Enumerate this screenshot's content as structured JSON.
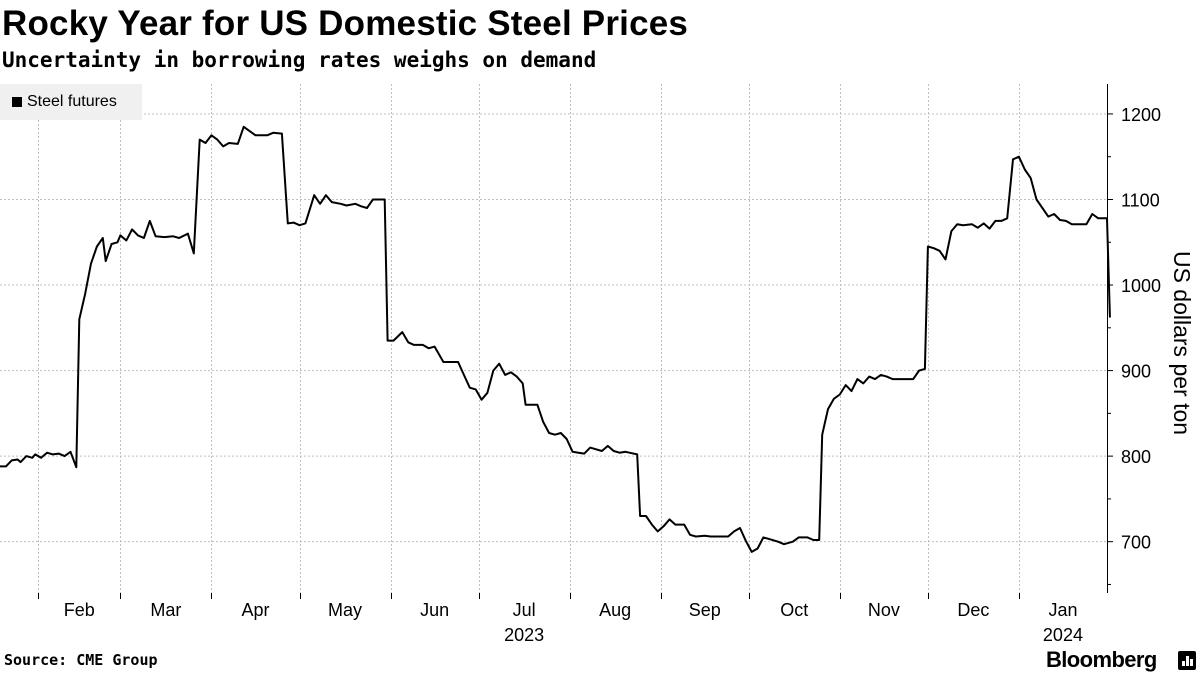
{
  "header": {
    "title": "Rocky Year for US Domestic Steel Prices",
    "subtitle": "Uncertainty in borrowing rates weighs on demand"
  },
  "legend": {
    "label": "Steel futures"
  },
  "footer": {
    "source": "Source: CME Group",
    "brand": "Bloomberg"
  },
  "colors": {
    "line": "#000000",
    "grid": "#bfbfbf",
    "legend_bg": "#f0f0f0"
  },
  "chart_data": {
    "type": "line",
    "title": "Rocky Year for US Domestic Steel Prices",
    "subtitle": "Uncertainty in borrowing rates weighs on demand",
    "xlabel": "",
    "ylabel": "US dollars per ton",
    "ylim": [
      640,
      1235
    ],
    "yticks": [
      700,
      800,
      900,
      1000,
      1100,
      1200
    ],
    "xlim": [
      "2023-01-19",
      "2024-01-31"
    ],
    "month_ticks": [
      {
        "date": "2023-02-01",
        "label": "Feb"
      },
      {
        "date": "2023-03-01",
        "label": "Mar"
      },
      {
        "date": "2023-04-01",
        "label": "Apr"
      },
      {
        "date": "2023-05-01",
        "label": "May"
      },
      {
        "date": "2023-06-01",
        "label": "Jun"
      },
      {
        "date": "2023-07-01",
        "label": "Jul"
      },
      {
        "date": "2023-08-01",
        "label": "Aug"
      },
      {
        "date": "2023-09-01",
        "label": "Sep"
      },
      {
        "date": "2023-10-01",
        "label": "Oct"
      },
      {
        "date": "2023-11-01",
        "label": "Nov"
      },
      {
        "date": "2023-12-01",
        "label": "Dec"
      },
      {
        "date": "2024-01-01",
        "label": "Jan"
      }
    ],
    "year_labels": [
      {
        "date": "2023-07-01",
        "label": "2023"
      },
      {
        "date": "2024-01-01",
        "label": "2024"
      }
    ],
    "legend_position": "top-left",
    "grid": true,
    "series": [
      {
        "name": "Steel futures",
        "points": [
          [
            "2023-01-19",
            788
          ],
          [
            "2023-01-21",
            788
          ],
          [
            "2023-01-23",
            795
          ],
          [
            "2023-01-25",
            796
          ],
          [
            "2023-01-26",
            793
          ],
          [
            "2023-01-28",
            800
          ],
          [
            "2023-01-30",
            798
          ],
          [
            "2023-01-31",
            802
          ],
          [
            "2023-02-02",
            798
          ],
          [
            "2023-02-04",
            804
          ],
          [
            "2023-02-06",
            802
          ],
          [
            "2023-02-08",
            803
          ],
          [
            "2023-02-10",
            800
          ],
          [
            "2023-02-12",
            805
          ],
          [
            "2023-02-14",
            787
          ],
          [
            "2023-02-15",
            960
          ],
          [
            "2023-02-17",
            990
          ],
          [
            "2023-02-19",
            1025
          ],
          [
            "2023-02-21",
            1045
          ],
          [
            "2023-02-23",
            1055
          ],
          [
            "2023-02-24",
            1028
          ],
          [
            "2023-02-26",
            1048
          ],
          [
            "2023-02-28",
            1050
          ],
          [
            "2023-03-01",
            1058
          ],
          [
            "2023-03-03",
            1052
          ],
          [
            "2023-03-05",
            1065
          ],
          [
            "2023-03-07",
            1058
          ],
          [
            "2023-03-09",
            1055
          ],
          [
            "2023-03-11",
            1075
          ],
          [
            "2023-03-13",
            1057
          ],
          [
            "2023-03-16",
            1056
          ],
          [
            "2023-03-19",
            1057
          ],
          [
            "2023-03-21",
            1055
          ],
          [
            "2023-03-24",
            1060
          ],
          [
            "2023-03-26",
            1037
          ],
          [
            "2023-03-28",
            1170
          ],
          [
            "2023-03-30",
            1166
          ],
          [
            "2023-04-01",
            1175
          ],
          [
            "2023-04-03",
            1170
          ],
          [
            "2023-04-05",
            1162
          ],
          [
            "2023-04-07",
            1166
          ],
          [
            "2023-04-10",
            1165
          ],
          [
            "2023-04-12",
            1185
          ],
          [
            "2023-04-14",
            1180
          ],
          [
            "2023-04-16",
            1175
          ],
          [
            "2023-04-20",
            1175
          ],
          [
            "2023-04-22",
            1178
          ],
          [
            "2023-04-25",
            1177
          ],
          [
            "2023-04-27",
            1072
          ],
          [
            "2023-04-29",
            1073
          ],
          [
            "2023-05-01",
            1070
          ],
          [
            "2023-05-03",
            1072
          ],
          [
            "2023-05-06",
            1105
          ],
          [
            "2023-05-08",
            1095
          ],
          [
            "2023-05-10",
            1105
          ],
          [
            "2023-05-12",
            1097
          ],
          [
            "2023-05-15",
            1095
          ],
          [
            "2023-05-17",
            1093
          ],
          [
            "2023-05-20",
            1095
          ],
          [
            "2023-05-22",
            1092
          ],
          [
            "2023-05-24",
            1090
          ],
          [
            "2023-05-26",
            1100
          ],
          [
            "2023-05-30",
            1100
          ],
          [
            "2023-05-31",
            935
          ],
          [
            "2023-06-02",
            935
          ],
          [
            "2023-06-05",
            945
          ],
          [
            "2023-06-07",
            933
          ],
          [
            "2023-06-09",
            930
          ],
          [
            "2023-06-12",
            930
          ],
          [
            "2023-06-14",
            926
          ],
          [
            "2023-06-16",
            928
          ],
          [
            "2023-06-19",
            910
          ],
          [
            "2023-06-24",
            910
          ],
          [
            "2023-06-26",
            895
          ],
          [
            "2023-06-28",
            880
          ],
          [
            "2023-06-30",
            878
          ],
          [
            "2023-07-02",
            866
          ],
          [
            "2023-07-04",
            874
          ],
          [
            "2023-07-06",
            900
          ],
          [
            "2023-07-08",
            908
          ],
          [
            "2023-07-10",
            895
          ],
          [
            "2023-07-12",
            898
          ],
          [
            "2023-07-14",
            893
          ],
          [
            "2023-07-16",
            885
          ],
          [
            "2023-07-17",
            860
          ],
          [
            "2023-07-21",
            860
          ],
          [
            "2023-07-23",
            840
          ],
          [
            "2023-07-25",
            827
          ],
          [
            "2023-07-27",
            825
          ],
          [
            "2023-07-29",
            827
          ],
          [
            "2023-07-31",
            820
          ],
          [
            "2023-08-02",
            805
          ],
          [
            "2023-08-04",
            804
          ],
          [
            "2023-08-06",
            803
          ],
          [
            "2023-08-08",
            810
          ],
          [
            "2023-08-10",
            808
          ],
          [
            "2023-08-12",
            806
          ],
          [
            "2023-08-14",
            812
          ],
          [
            "2023-08-16",
            806
          ],
          [
            "2023-08-18",
            804
          ],
          [
            "2023-08-20",
            805
          ],
          [
            "2023-08-24",
            802
          ],
          [
            "2023-08-25",
            730
          ],
          [
            "2023-08-27",
            730
          ],
          [
            "2023-08-29",
            720
          ],
          [
            "2023-08-31",
            712
          ],
          [
            "2023-09-02",
            718
          ],
          [
            "2023-09-04",
            726
          ],
          [
            "2023-09-06",
            720
          ],
          [
            "2023-09-09",
            720
          ],
          [
            "2023-09-11",
            708
          ],
          [
            "2023-09-13",
            706
          ],
          [
            "2023-09-16",
            707
          ],
          [
            "2023-09-18",
            706
          ],
          [
            "2023-09-21",
            706
          ],
          [
            "2023-09-24",
            706
          ],
          [
            "2023-09-26",
            712
          ],
          [
            "2023-09-28",
            716
          ],
          [
            "2023-09-30",
            701
          ],
          [
            "2023-10-02",
            688
          ],
          [
            "2023-10-04",
            692
          ],
          [
            "2023-10-06",
            705
          ],
          [
            "2023-10-08",
            703
          ],
          [
            "2023-10-11",
            700
          ],
          [
            "2023-10-13",
            697
          ],
          [
            "2023-10-16",
            700
          ],
          [
            "2023-10-18",
            705
          ],
          [
            "2023-10-21",
            705
          ],
          [
            "2023-10-23",
            702
          ],
          [
            "2023-10-25",
            702
          ],
          [
            "2023-10-26",
            825
          ],
          [
            "2023-10-28",
            855
          ],
          [
            "2023-10-30",
            867
          ],
          [
            "2023-11-01",
            872
          ],
          [
            "2023-11-03",
            883
          ],
          [
            "2023-11-05",
            876
          ],
          [
            "2023-11-07",
            890
          ],
          [
            "2023-11-09",
            885
          ],
          [
            "2023-11-11",
            893
          ],
          [
            "2023-11-13",
            890
          ],
          [
            "2023-11-15",
            895
          ],
          [
            "2023-11-17",
            893
          ],
          [
            "2023-11-19",
            890
          ],
          [
            "2023-11-26",
            890
          ],
          [
            "2023-11-28",
            900
          ],
          [
            "2023-11-30",
            902
          ],
          [
            "2023-12-01",
            1045
          ],
          [
            "2023-12-03",
            1043
          ],
          [
            "2023-12-05",
            1040
          ],
          [
            "2023-12-07",
            1030
          ],
          [
            "2023-12-09",
            1063
          ],
          [
            "2023-12-11",
            1071
          ],
          [
            "2023-12-13",
            1070
          ],
          [
            "2023-12-16",
            1071
          ],
          [
            "2023-12-18",
            1067
          ],
          [
            "2023-12-20",
            1072
          ],
          [
            "2023-12-22",
            1066
          ],
          [
            "2023-12-24",
            1075
          ],
          [
            "2023-12-26",
            1075
          ],
          [
            "2023-12-28",
            1078
          ],
          [
            "2023-12-30",
            1147
          ],
          [
            "2024-01-01",
            1150
          ],
          [
            "2024-01-03",
            1135
          ],
          [
            "2024-01-05",
            1125
          ],
          [
            "2024-01-07",
            1100
          ],
          [
            "2024-01-09",
            1090
          ],
          [
            "2024-01-11",
            1080
          ],
          [
            "2024-01-13",
            1083
          ],
          [
            "2024-01-15",
            1076
          ],
          [
            "2024-01-17",
            1075
          ],
          [
            "2024-01-19",
            1071
          ],
          [
            "2024-01-24",
            1071
          ],
          [
            "2024-01-26",
            1083
          ],
          [
            "2024-01-28",
            1078
          ],
          [
            "2024-01-31",
            1078
          ],
          [
            "2024-02-01",
            963
          ]
        ]
      }
    ]
  }
}
